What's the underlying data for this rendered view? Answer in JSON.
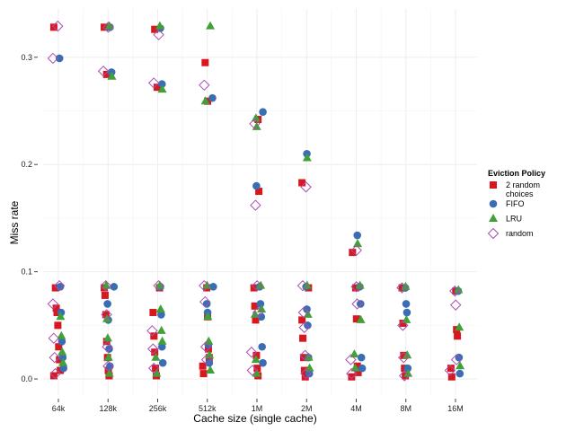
{
  "chart_data": {
    "type": "scatter",
    "title": "",
    "xlabel": "Cache size (single cache)",
    "ylabel": "Miss rate",
    "categories": [
      "64k",
      "128k",
      "256k",
      "512k",
      "1M",
      "2M",
      "4M",
      "8M",
      "16M"
    ],
    "y_ticks": [
      0.0,
      0.1,
      0.2,
      0.3
    ],
    "y_tick_labels": [
      "0.0",
      "0.1",
      "0.2",
      "0.3"
    ],
    "ylim": [
      -0.015,
      0.345
    ],
    "grid": true,
    "legend": {
      "title": "Eviction Policy",
      "placement": "right",
      "entries": [
        {
          "label_lines": [
            "2 random",
            "choices"
          ],
          "series": "2 random choices"
        },
        {
          "label_lines": [
            "FIFO"
          ],
          "series": "FIFO"
        },
        {
          "label_lines": [
            "LRU"
          ],
          "series": "LRU"
        },
        {
          "label_lines": [
            "random"
          ],
          "series": "random"
        }
      ]
    },
    "series": [
      {
        "name": "2 random choices",
        "shape": "square",
        "color": "#d7181e",
        "points": [
          {
            "x": "64k",
            "y": 0.328
          },
          {
            "x": "128k",
            "y": 0.328
          },
          {
            "x": "256k",
            "y": 0.326
          },
          {
            "x": "512k",
            "y": 0.295
          },
          {
            "x": "128k",
            "y": 0.284
          },
          {
            "x": "256k",
            "y": 0.272
          },
          {
            "x": "512k",
            "y": 0.259
          },
          {
            "x": "1M",
            "y": 0.242
          },
          {
            "x": "1M",
            "y": 0.175
          },
          {
            "x": "2M",
            "y": 0.183
          },
          {
            "x": "4M",
            "y": 0.118
          },
          {
            "x": "64k",
            "y": 0.085
          },
          {
            "x": "64k",
            "y": 0.066
          },
          {
            "x": "64k",
            "y": 0.062
          },
          {
            "x": "64k",
            "y": 0.05
          },
          {
            "x": "64k",
            "y": 0.03
          },
          {
            "x": "64k",
            "y": 0.018
          },
          {
            "x": "64k",
            "y": 0.008
          },
          {
            "x": "64k",
            "y": 0.003
          },
          {
            "x": "128k",
            "y": 0.085
          },
          {
            "x": "128k",
            "y": 0.078
          },
          {
            "x": "128k",
            "y": 0.06
          },
          {
            "x": "128k",
            "y": 0.035
          },
          {
            "x": "128k",
            "y": 0.02
          },
          {
            "x": "128k",
            "y": 0.008
          },
          {
            "x": "128k",
            "y": 0.003
          },
          {
            "x": "256k",
            "y": 0.085
          },
          {
            "x": "256k",
            "y": 0.062
          },
          {
            "x": "256k",
            "y": 0.04
          },
          {
            "x": "256k",
            "y": 0.025
          },
          {
            "x": "256k",
            "y": 0.01
          },
          {
            "x": "256k",
            "y": 0.003
          },
          {
            "x": "512k",
            "y": 0.085
          },
          {
            "x": "512k",
            "y": 0.058
          },
          {
            "x": "512k",
            "y": 0.028
          },
          {
            "x": "512k",
            "y": 0.02
          },
          {
            "x": "512k",
            "y": 0.012
          },
          {
            "x": "512k",
            "y": 0.005
          },
          {
            "x": "1M",
            "y": 0.085
          },
          {
            "x": "1M",
            "y": 0.068
          },
          {
            "x": "1M",
            "y": 0.055
          },
          {
            "x": "1M",
            "y": 0.022
          },
          {
            "x": "1M",
            "y": 0.01
          },
          {
            "x": "1M",
            "y": 0.003
          },
          {
            "x": "2M",
            "y": 0.085
          },
          {
            "x": "2M",
            "y": 0.055
          },
          {
            "x": "2M",
            "y": 0.038
          },
          {
            "x": "2M",
            "y": 0.02
          },
          {
            "x": "2M",
            "y": 0.008
          },
          {
            "x": "2M",
            "y": 0.002
          },
          {
            "x": "4M",
            "y": 0.085
          },
          {
            "x": "4M",
            "y": 0.056
          },
          {
            "x": "4M",
            "y": 0.012
          },
          {
            "x": "4M",
            "y": 0.006
          },
          {
            "x": "4M",
            "y": 0.002
          },
          {
            "x": "8M",
            "y": 0.085
          },
          {
            "x": "8M",
            "y": 0.052
          },
          {
            "x": "8M",
            "y": 0.022
          },
          {
            "x": "8M",
            "y": 0.01
          },
          {
            "x": "8M",
            "y": 0.003
          },
          {
            "x": "16M",
            "y": 0.082
          },
          {
            "x": "16M",
            "y": 0.046
          },
          {
            "x": "16M",
            "y": 0.04
          },
          {
            "x": "16M",
            "y": 0.01
          },
          {
            "x": "16M",
            "y": 0.002
          }
        ]
      },
      {
        "name": "FIFO",
        "shape": "circle",
        "color": "#3a6db4",
        "points": [
          {
            "x": "64k",
            "y": 0.299
          },
          {
            "x": "128k",
            "y": 0.328
          },
          {
            "x": "256k",
            "y": 0.327
          },
          {
            "x": "128k",
            "y": 0.286
          },
          {
            "x": "256k",
            "y": 0.275
          },
          {
            "x": "512k",
            "y": 0.262
          },
          {
            "x": "1M",
            "y": 0.249
          },
          {
            "x": "1M",
            "y": 0.18
          },
          {
            "x": "2M",
            "y": 0.21
          },
          {
            "x": "4M",
            "y": 0.134
          },
          {
            "x": "64k",
            "y": 0.086
          },
          {
            "x": "64k",
            "y": 0.062
          },
          {
            "x": "64k",
            "y": 0.035
          },
          {
            "x": "64k",
            "y": 0.02
          },
          {
            "x": "64k",
            "y": 0.01
          },
          {
            "x": "128k",
            "y": 0.086
          },
          {
            "x": "128k",
            "y": 0.07
          },
          {
            "x": "128k",
            "y": 0.055
          },
          {
            "x": "128k",
            "y": 0.028
          },
          {
            "x": "128k",
            "y": 0.012
          },
          {
            "x": "256k",
            "y": 0.086
          },
          {
            "x": "256k",
            "y": 0.06
          },
          {
            "x": "256k",
            "y": 0.03
          },
          {
            "x": "256k",
            "y": 0.015
          },
          {
            "x": "512k",
            "y": 0.086
          },
          {
            "x": "512k",
            "y": 0.07
          },
          {
            "x": "512k",
            "y": 0.062
          },
          {
            "x": "512k",
            "y": 0.032
          },
          {
            "x": "512k",
            "y": 0.015
          },
          {
            "x": "1M",
            "y": 0.086
          },
          {
            "x": "1M",
            "y": 0.07
          },
          {
            "x": "1M",
            "y": 0.058
          },
          {
            "x": "1M",
            "y": 0.03
          },
          {
            "x": "1M",
            "y": 0.015
          },
          {
            "x": "2M",
            "y": 0.086
          },
          {
            "x": "2M",
            "y": 0.065
          },
          {
            "x": "2M",
            "y": 0.05
          },
          {
            "x": "2M",
            "y": 0.02
          },
          {
            "x": "2M",
            "y": 0.005
          },
          {
            "x": "4M",
            "y": 0.086
          },
          {
            "x": "4M",
            "y": 0.07
          },
          {
            "x": "4M",
            "y": 0.02
          },
          {
            "x": "4M",
            "y": 0.01
          },
          {
            "x": "8M",
            "y": 0.085
          },
          {
            "x": "8M",
            "y": 0.07
          },
          {
            "x": "8M",
            "y": 0.062
          },
          {
            "x": "8M",
            "y": 0.01
          },
          {
            "x": "16M",
            "y": 0.082
          },
          {
            "x": "16M",
            "y": 0.02
          },
          {
            "x": "16M",
            "y": 0.005
          }
        ]
      },
      {
        "name": "LRU",
        "shape": "triangle",
        "color": "#41a037",
        "points": [
          {
            "x": "128k",
            "y": 0.329
          },
          {
            "x": "256k",
            "y": 0.329
          },
          {
            "x": "512k",
            "y": 0.329
          },
          {
            "x": "128k",
            "y": 0.282
          },
          {
            "x": "256k",
            "y": 0.27
          },
          {
            "x": "512k",
            "y": 0.259
          },
          {
            "x": "1M",
            "y": 0.243
          },
          {
            "x": "1M",
            "y": 0.235
          },
          {
            "x": "2M",
            "y": 0.206
          },
          {
            "x": "4M",
            "y": 0.126
          },
          {
            "x": "64k",
            "y": 0.058
          },
          {
            "x": "64k",
            "y": 0.04
          },
          {
            "x": "64k",
            "y": 0.025
          },
          {
            "x": "64k",
            "y": 0.015
          },
          {
            "x": "128k",
            "y": 0.087
          },
          {
            "x": "128k",
            "y": 0.056
          },
          {
            "x": "128k",
            "y": 0.038
          },
          {
            "x": "128k",
            "y": 0.02
          },
          {
            "x": "128k",
            "y": 0.005
          },
          {
            "x": "256k",
            "y": 0.087
          },
          {
            "x": "256k",
            "y": 0.065
          },
          {
            "x": "256k",
            "y": 0.045
          },
          {
            "x": "256k",
            "y": 0.035
          },
          {
            "x": "256k",
            "y": 0.02
          },
          {
            "x": "256k",
            "y": 0.005
          },
          {
            "x": "512k",
            "y": 0.087
          },
          {
            "x": "512k",
            "y": 0.058
          },
          {
            "x": "512k",
            "y": 0.035
          },
          {
            "x": "512k",
            "y": 0.022
          },
          {
            "x": "512k",
            "y": 0.008
          },
          {
            "x": "1M",
            "y": 0.087
          },
          {
            "x": "1M",
            "y": 0.065
          },
          {
            "x": "1M",
            "y": 0.06
          },
          {
            "x": "1M",
            "y": 0.018
          },
          {
            "x": "1M",
            "y": 0.005
          },
          {
            "x": "2M",
            "y": 0.087
          },
          {
            "x": "2M",
            "y": 0.06
          },
          {
            "x": "2M",
            "y": 0.02
          },
          {
            "x": "2M",
            "y": 0.01
          },
          {
            "x": "4M",
            "y": 0.087
          },
          {
            "x": "4M",
            "y": 0.055
          },
          {
            "x": "4M",
            "y": 0.023
          },
          {
            "x": "4M",
            "y": 0.01
          },
          {
            "x": "8M",
            "y": 0.086
          },
          {
            "x": "8M",
            "y": 0.055
          },
          {
            "x": "8M",
            "y": 0.022
          },
          {
            "x": "8M",
            "y": 0.005
          },
          {
            "x": "16M",
            "y": 0.083
          },
          {
            "x": "16M",
            "y": 0.048
          },
          {
            "x": "16M",
            "y": 0.012
          }
        ]
      },
      {
        "name": "random",
        "shape": "diamond",
        "color": "#a94db0",
        "points": [
          {
            "x": "64k",
            "y": 0.329
          },
          {
            "x": "128k",
            "y": 0.328
          },
          {
            "x": "256k",
            "y": 0.321
          },
          {
            "x": "64k",
            "y": 0.299
          },
          {
            "x": "128k",
            "y": 0.287
          },
          {
            "x": "256k",
            "y": 0.276
          },
          {
            "x": "512k",
            "y": 0.274
          },
          {
            "x": "1M",
            "y": 0.238
          },
          {
            "x": "1M",
            "y": 0.162
          },
          {
            "x": "2M",
            "y": 0.179
          },
          {
            "x": "4M",
            "y": 0.12
          },
          {
            "x": "64k",
            "y": 0.087
          },
          {
            "x": "64k",
            "y": 0.07
          },
          {
            "x": "64k",
            "y": 0.038
          },
          {
            "x": "64k",
            "y": 0.02
          },
          {
            "x": "64k",
            "y": 0.005
          },
          {
            "x": "128k",
            "y": 0.087
          },
          {
            "x": "128k",
            "y": 0.06
          },
          {
            "x": "128k",
            "y": 0.03
          },
          {
            "x": "128k",
            "y": 0.012
          },
          {
            "x": "256k",
            "y": 0.087
          },
          {
            "x": "256k",
            "y": 0.045
          },
          {
            "x": "256k",
            "y": 0.028
          },
          {
            "x": "256k",
            "y": 0.01
          },
          {
            "x": "512k",
            "y": 0.087
          },
          {
            "x": "512k",
            "y": 0.072
          },
          {
            "x": "512k",
            "y": 0.03
          },
          {
            "x": "512k",
            "y": 0.018
          },
          {
            "x": "1M",
            "y": 0.087
          },
          {
            "x": "1M",
            "y": 0.062
          },
          {
            "x": "1M",
            "y": 0.025
          },
          {
            "x": "1M",
            "y": 0.008
          },
          {
            "x": "2M",
            "y": 0.087
          },
          {
            "x": "2M",
            "y": 0.062
          },
          {
            "x": "2M",
            "y": 0.048
          },
          {
            "x": "2M",
            "y": 0.022
          },
          {
            "x": "2M",
            "y": 0.005
          },
          {
            "x": "4M",
            "y": 0.086
          },
          {
            "x": "4M",
            "y": 0.07
          },
          {
            "x": "4M",
            "y": 0.018
          },
          {
            "x": "4M",
            "y": 0.005
          },
          {
            "x": "8M",
            "y": 0.085
          },
          {
            "x": "8M",
            "y": 0.05
          },
          {
            "x": "8M",
            "y": 0.02
          },
          {
            "x": "8M",
            "y": 0.003
          },
          {
            "x": "16M",
            "y": 0.082
          },
          {
            "x": "16M",
            "y": 0.069
          },
          {
            "x": "16M",
            "y": 0.018
          },
          {
            "x": "16M",
            "y": 0.008
          }
        ]
      }
    ]
  }
}
